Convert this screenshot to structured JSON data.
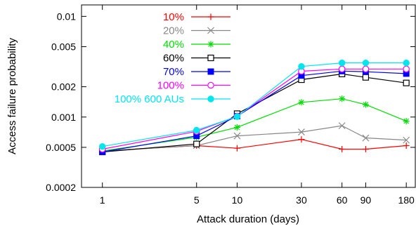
{
  "chart_data": {
    "type": "line",
    "title": "",
    "xlabel": "Attack duration (days)",
    "ylabel": "Access failure probability",
    "x_scale": "log",
    "y_scale": "log",
    "xlim": [
      0.7,
      210
    ],
    "ylim": [
      0.0002,
      0.013
    ],
    "x_ticks": [
      1,
      5,
      10,
      30,
      60,
      90,
      180
    ],
    "x_tick_labels": [
      "1",
      "5",
      "10",
      "30",
      "60",
      "90",
      "180"
    ],
    "y_ticks": [
      0.0002,
      0.0005,
      0.001,
      0.002,
      0.005,
      0.01
    ],
    "y_tick_labels": [
      "0.0002",
      "0.0005",
      "0.001",
      "0.002",
      "0.005",
      "0.01"
    ],
    "grid": false,
    "legend_position": "top-left",
    "x": [
      1,
      5,
      10,
      30,
      60,
      90,
      180
    ],
    "series": [
      {
        "name": "10%",
        "color": "#ff0000",
        "marker": "plus",
        "values": [
          0.00046,
          0.00052,
          0.00049,
          0.0006,
          0.00048,
          0.00048,
          0.00052
        ]
      },
      {
        "name": "20%",
        "color": "#888888",
        "marker": "cross",
        "values": [
          0.00046,
          0.00052,
          0.00065,
          0.00071,
          0.00082,
          0.00062,
          0.00059
        ]
      },
      {
        "name": "40%",
        "color": "#00dd00",
        "marker": "star",
        "values": [
          0.00046,
          0.00063,
          0.00079,
          0.0014,
          0.00152,
          0.00133,
          0.00091
        ]
      },
      {
        "name": "60%",
        "color": "#000000",
        "marker": "open-square",
        "values": [
          0.00045,
          0.00054,
          0.00108,
          0.00235,
          0.00268,
          0.00248,
          0.00218
        ]
      },
      {
        "name": "70%",
        "color": "#0000ff",
        "marker": "filled-square",
        "values": [
          0.00045,
          0.00065,
          0.00102,
          0.00258,
          0.00286,
          0.00282,
          0.0027
        ]
      },
      {
        "name": "100%",
        "color": "#ff00ff",
        "marker": "open-circle",
        "values": [
          0.00048,
          0.00072,
          0.00102,
          0.00285,
          0.003,
          0.003,
          0.003
        ]
      },
      {
        "name": "100% 600 AUs",
        "color": "#00e5ee",
        "marker": "filled-circle",
        "values": [
          0.00051,
          0.00074,
          0.00101,
          0.00318,
          0.00345,
          0.00345,
          0.00345
        ]
      }
    ]
  }
}
